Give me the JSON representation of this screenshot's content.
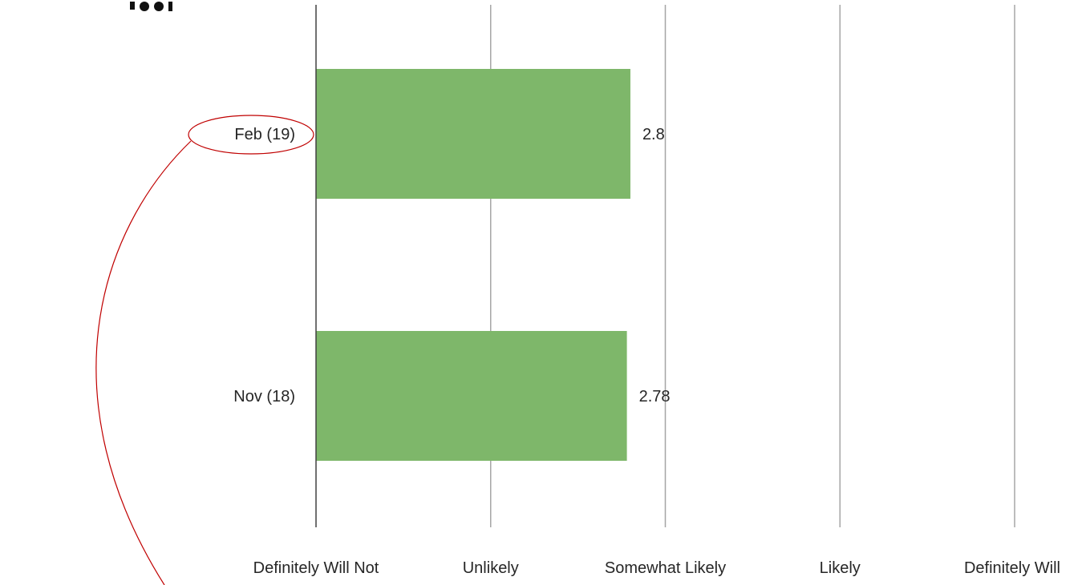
{
  "chart_data": {
    "type": "bar",
    "orientation": "horizontal",
    "categories": [
      "Feb (19)",
      "Nov (18)"
    ],
    "values": [
      2.8,
      2.78
    ],
    "value_labels": [
      "2.8",
      "2.78"
    ],
    "xlim": [
      1,
      5
    ],
    "xticks": [
      1,
      2,
      3,
      4,
      5
    ],
    "xtick_labels": [
      "Definitely Will Not",
      "Unlikely",
      "Somewhat Likely",
      "Likely",
      "Definitely Will"
    ],
    "grid": true,
    "bar_color": "#7EB76A",
    "annotation": {
      "target": "Feb (19)",
      "color": "#C00000",
      "shape": "ellipse with curved connector"
    }
  }
}
